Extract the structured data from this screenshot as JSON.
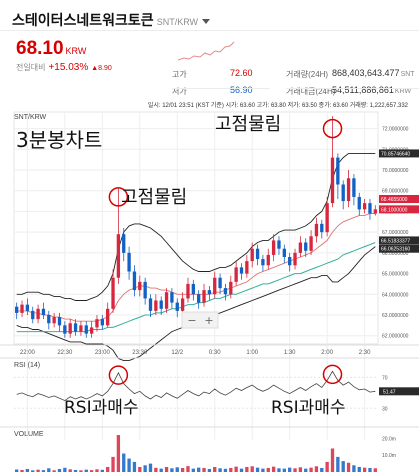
{
  "header": {
    "coin_name": "스테이터스네트워크토큰",
    "pair": "SNT/KRW",
    "price": "68.10",
    "price_unit": "KRW",
    "change_label": "전일대비",
    "change_pct": "+15.03%",
    "change_abs": "▲8.90",
    "high_label": "고가",
    "high_value": "72.60",
    "low_label": "저가",
    "low_value": "56.90",
    "volume_label": "거래량(24H)",
    "volume_value": "868,403,643.477",
    "volume_unit": "SNT",
    "amount_label": "거래대금(24H)",
    "amount_value": "54,511,886,861",
    "amount_unit": "KRW"
  },
  "chart_data": {
    "type": "candlestick",
    "pair_label": "SNT/KRW",
    "interval_note": "",
    "info_line": "일시: 12/01 23:51 (KST 기준)  시가: 63.60  고가: 63.80  저가: 63.50  종가: 63.60  거래량: 1,222,657.332",
    "x_ticks": [
      "22:00",
      "22:30",
      "23:00",
      "23:30",
      "12/2",
      "0:30",
      "1:00",
      "1:30",
      "2:00",
      "2:30"
    ],
    "price_axis_ticks": [
      "72.0000000",
      "71.0000000",
      "70.0000000",
      "69.0000000",
      "68.0000000",
      "67.0000000",
      "66.0000000",
      "65.0000000",
      "64.0000000",
      "63.0000000",
      "62.0000000"
    ],
    "price_range": [
      61.6,
      72.8
    ],
    "price_tags": [
      {
        "value": 70.8,
        "label": "70.85746640",
        "color": "#2a2a2a"
      },
      {
        "value": 68.6,
        "label": "68.4655000",
        "color": "#d7263d"
      },
      {
        "value": 68.1,
        "label": "68.1000000",
        "color": "#d7263d"
      },
      {
        "value": 66.6,
        "label": "66.51833377",
        "color": "#2a2a2a"
      },
      {
        "value": 66.2,
        "label": "66.06253160",
        "color": "#2a2a2a"
      }
    ],
    "zoom_controls": [
      "−",
      "+"
    ],
    "candles": [
      [
        63.4,
        63.1,
        63.6,
        62.8
      ],
      [
        63.1,
        63.5,
        63.7,
        62.9
      ],
      [
        63.5,
        63.2,
        63.8,
        63.0
      ],
      [
        63.2,
        62.8,
        63.4,
        62.6
      ],
      [
        62.8,
        63.3,
        63.5,
        62.6
      ],
      [
        63.3,
        63.0,
        63.6,
        62.8
      ],
      [
        63.0,
        62.6,
        63.2,
        62.3
      ],
      [
        62.6,
        62.9,
        63.1,
        62.4
      ],
      [
        62.9,
        62.5,
        63.1,
        62.2
      ],
      [
        62.5,
        62.1,
        62.7,
        61.9
      ],
      [
        62.1,
        62.6,
        62.8,
        61.9
      ],
      [
        62.6,
        62.2,
        62.8,
        62.0
      ],
      [
        62.2,
        62.5,
        62.7,
        62.0
      ],
      [
        62.5,
        62.1,
        62.7,
        61.9
      ],
      [
        62.1,
        62.4,
        62.7,
        61.9
      ],
      [
        62.4,
        62.8,
        63.0,
        62.2
      ],
      [
        62.8,
        62.5,
        63.0,
        62.3
      ],
      [
        62.5,
        63.3,
        63.6,
        62.4
      ],
      [
        63.3,
        64.8,
        65.2,
        63.1
      ],
      [
        64.8,
        66.9,
        69.1,
        64.5
      ],
      [
        66.9,
        66.0,
        67.2,
        65.6
      ],
      [
        66.0,
        65.1,
        66.3,
        64.7
      ],
      [
        65.1,
        64.2,
        65.4,
        63.9
      ],
      [
        64.2,
        64.6,
        64.9,
        63.9
      ],
      [
        64.6,
        63.8,
        64.8,
        63.5
      ],
      [
        63.8,
        63.2,
        64.0,
        62.9
      ],
      [
        63.2,
        63.7,
        64.0,
        63.0
      ],
      [
        63.7,
        63.3,
        63.9,
        63.0
      ],
      [
        63.3,
        64.1,
        64.3,
        63.1
      ],
      [
        64.1,
        63.6,
        64.3,
        63.3
      ],
      [
        63.6,
        63.2,
        63.8,
        62.9
      ],
      [
        63.2,
        63.8,
        64.1,
        63.0
      ],
      [
        63.8,
        64.5,
        64.8,
        63.6
      ],
      [
        64.5,
        64.0,
        64.7,
        63.7
      ],
      [
        64.0,
        63.6,
        64.2,
        63.3
      ],
      [
        63.6,
        64.2,
        64.5,
        63.4
      ],
      [
        64.2,
        64.0,
        64.4,
        63.7
      ],
      [
        64.0,
        64.8,
        65.1,
        63.8
      ],
      [
        64.8,
        64.3,
        65.0,
        64.0
      ],
      [
        64.3,
        64.0,
        64.5,
        63.7
      ],
      [
        64.0,
        64.6,
        64.9,
        63.8
      ],
      [
        64.6,
        65.3,
        65.6,
        64.4
      ],
      [
        65.3,
        65.0,
        65.5,
        64.7
      ],
      [
        65.0,
        65.6,
        65.9,
        64.8
      ],
      [
        65.6,
        66.2,
        66.5,
        65.3
      ],
      [
        66.2,
        65.7,
        66.4,
        65.4
      ],
      [
        65.7,
        65.4,
        65.9,
        65.1
      ],
      [
        65.4,
        65.9,
        66.2,
        65.2
      ],
      [
        65.9,
        66.6,
        66.9,
        65.6
      ],
      [
        66.6,
        66.2,
        66.8,
        65.9
      ],
      [
        66.2,
        65.8,
        66.4,
        65.5
      ],
      [
        65.8,
        65.4,
        66.0,
        65.1
      ],
      [
        65.4,
        66.0,
        66.2,
        65.2
      ],
      [
        66.0,
        66.5,
        66.8,
        65.8
      ],
      [
        66.5,
        66.1,
        66.7,
        65.8
      ],
      [
        66.1,
        66.8,
        67.1,
        65.9
      ],
      [
        66.8,
        67.4,
        67.7,
        66.5
      ],
      [
        67.4,
        67.0,
        67.6,
        66.7
      ],
      [
        67.0,
        68.4,
        68.7,
        66.8
      ],
      [
        68.4,
        70.6,
        72.6,
        68.2
      ],
      [
        70.6,
        69.3,
        70.8,
        68.6
      ],
      [
        69.3,
        68.5,
        69.5,
        68.1
      ],
      [
        68.5,
        69.6,
        70.0,
        68.2
      ],
      [
        69.6,
        68.7,
        69.8,
        68.3
      ],
      [
        68.7,
        68.1,
        68.9,
        67.8
      ],
      [
        68.1,
        68.4,
        68.6,
        67.9
      ],
      [
        68.4,
        67.9,
        68.6,
        67.6
      ],
      [
        67.9,
        68.1,
        68.3,
        67.8
      ]
    ],
    "bollinger_upper": [
      64.0,
      64.0,
      64.1,
      64.1,
      64.1,
      64.0,
      64.0,
      63.9,
      63.9,
      63.8,
      63.8,
      63.7,
      63.7,
      63.7,
      63.8,
      63.9,
      64.1,
      64.4,
      65.0,
      66.2,
      67.0,
      67.3,
      67.4,
      67.4,
      67.3,
      67.2,
      67.0,
      66.8,
      66.5,
      66.2,
      65.9,
      65.6,
      65.4,
      65.2,
      65.1,
      65.1,
      65.1,
      65.2,
      65.3,
      65.3,
      65.4,
      65.6,
      65.8,
      66.0,
      66.3,
      66.5,
      66.6,
      66.6,
      66.8,
      67.0,
      67.1,
      67.1,
      67.1,
      67.2,
      67.3,
      67.5,
      67.8,
      68.0,
      68.5,
      69.6,
      70.3,
      70.6,
      70.8,
      70.8,
      70.8,
      70.8,
      70.8,
      70.8
    ],
    "bollinger_lower": [
      62.5,
      62.4,
      62.4,
      62.3,
      62.3,
      62.2,
      62.1,
      62.0,
      61.9,
      61.8,
      61.7,
      61.7,
      61.7,
      61.6,
      61.6,
      61.6,
      61.6,
      61.5,
      61.3,
      60.9,
      60.8,
      60.8,
      60.9,
      61.0,
      61.2,
      61.4,
      61.6,
      61.8,
      62.0,
      62.2,
      62.3,
      62.4,
      62.5,
      62.6,
      62.7,
      62.8,
      62.9,
      63.0,
      63.1,
      63.2,
      63.3,
      63.4,
      63.5,
      63.6,
      63.7,
      63.8,
      63.9,
      64.0,
      64.1,
      64.2,
      64.3,
      64.4,
      64.5,
      64.6,
      64.7,
      64.8,
      64.8,
      64.9,
      64.9,
      64.6,
      64.6,
      64.8,
      65.0,
      65.3,
      65.6,
      65.9,
      66.1,
      66.3
    ],
    "ma_red": [
      63.2,
      63.2,
      63.2,
      63.1,
      63.1,
      63.0,
      63.0,
      62.9,
      62.9,
      62.8,
      62.8,
      62.7,
      62.7,
      62.7,
      62.7,
      62.7,
      62.8,
      62.9,
      63.2,
      63.7,
      64.0,
      64.2,
      64.3,
      64.4,
      64.4,
      64.3,
      64.3,
      64.2,
      64.2,
      64.1,
      64.0,
      64.0,
      64.0,
      64.0,
      64.0,
      64.0,
      64.0,
      64.1,
      64.1,
      64.2,
      64.3,
      64.4,
      64.5,
      64.6,
      64.8,
      65.0,
      65.1,
      65.2,
      65.3,
      65.4,
      65.5,
      65.6,
      65.7,
      65.8,
      65.9,
      66.0,
      66.2,
      66.4,
      66.6,
      67.0,
      67.3,
      67.5,
      67.6,
      67.7,
      67.8,
      67.8,
      67.9,
      67.9
    ],
    "ma_teal": [
      62.2,
      62.2,
      62.2,
      62.2,
      62.2,
      62.2,
      62.2,
      62.2,
      62.2,
      62.2,
      62.2,
      62.2,
      62.2,
      62.2,
      62.3,
      62.3,
      62.3,
      62.4,
      62.4,
      62.5,
      62.6,
      62.7,
      62.8,
      62.9,
      63.0,
      63.0,
      63.1,
      63.1,
      63.2,
      63.3,
      63.3,
      63.4,
      63.5,
      63.5,
      63.6,
      63.6,
      63.7,
      63.8,
      63.8,
      63.9,
      64.0,
      64.0,
      64.1,
      64.2,
      64.3,
      64.4,
      64.5,
      64.5,
      64.6,
      64.7,
      64.8,
      64.9,
      65.0,
      65.0,
      65.1,
      65.2,
      65.3,
      65.4,
      65.5,
      65.6,
      65.7,
      65.9,
      66.0,
      66.1,
      66.2,
      66.3,
      66.4,
      66.5
    ],
    "rsi": {
      "label": "RSI (14)",
      "ticks": [
        "70",
        "30"
      ],
      "range": [
        20,
        90
      ],
      "current": "51.47",
      "values": [
        48,
        50,
        47,
        45,
        49,
        47,
        44,
        46,
        43,
        40,
        45,
        42,
        45,
        42,
        45,
        49,
        46,
        52,
        62,
        76,
        62,
        55,
        49,
        52,
        46,
        42,
        47,
        44,
        50,
        46,
        43,
        48,
        53,
        49,
        46,
        51,
        49,
        55,
        50,
        47,
        51,
        56,
        53,
        57,
        60,
        55,
        52,
        55,
        60,
        56,
        52,
        49,
        53,
        57,
        53,
        58,
        62,
        57,
        66,
        78,
        66,
        60,
        64,
        58,
        54,
        55,
        51,
        52
      ]
    },
    "volume": {
      "label": "VOLUME",
      "ticks": [
        "20.0m",
        "10.0m"
      ],
      "max": 25,
      "values": [
        1.5,
        1.2,
        1.8,
        1.0,
        1.4,
        1.1,
        2.2,
        1.0,
        1.8,
        2.5,
        1.6,
        1.2,
        1.0,
        1.4,
        1.1,
        1.6,
        1.3,
        3.0,
        9.0,
        22.0,
        11.0,
        8.0,
        6.0,
        3.0,
        4.0,
        5.0,
        2.5,
        2.0,
        3.0,
        2.2,
        2.8,
        2.4,
        3.5,
        2.0,
        2.6,
        2.4,
        1.8,
        3.0,
        2.2,
        1.9,
        2.4,
        3.2,
        2.0,
        3.0,
        3.4,
        2.6,
        2.0,
        2.4,
        3.2,
        2.2,
        2.0,
        2.6,
        2.2,
        2.8,
        2.0,
        2.6,
        3.4,
        2.4,
        6.0,
        14.0,
        9.0,
        6.5,
        5.5,
        4.0,
        3.0,
        2.6,
        2.4,
        2.2
      ]
    }
  },
  "annotations": {
    "chart_caption": "3분봉차트",
    "fixed_a": "고점물림",
    "fixed_b": "고점물림",
    "rsi_a": "RSI과매수",
    "rsi_b": "RSI과매수"
  },
  "colors": {
    "up": "#d7263d",
    "down": "#1261c4",
    "band": "#222222",
    "ma_red": "#e07070",
    "ma_teal": "#36b0a0",
    "circle": "#d60000",
    "grid": "#eeeeee"
  }
}
